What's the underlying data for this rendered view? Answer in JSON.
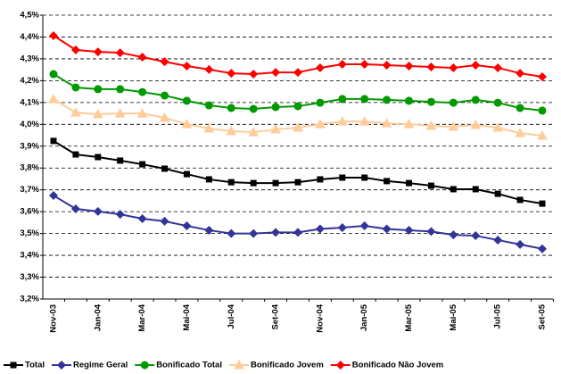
{
  "chart_data": {
    "type": "line",
    "categories": [
      "Nov-03",
      null,
      "Jan-04",
      null,
      "Mar-04",
      null,
      "Mai-04",
      null,
      "Jul-04",
      null,
      "Set-04",
      null,
      "Nov-04",
      null,
      "Jan-05",
      null,
      "Mar-05",
      null,
      "Mai-05",
      null,
      "Jul-05",
      null,
      "Set-05"
    ],
    "series": [
      {
        "name": "Total",
        "color": "#000000",
        "marker": "square",
        "values": [
          3.924,
          3.862,
          3.85,
          3.834,
          3.817,
          3.797,
          3.772,
          3.748,
          3.735,
          3.731,
          3.731,
          3.735,
          3.748,
          3.756,
          3.756,
          3.74,
          3.731,
          3.719,
          3.703,
          3.703,
          3.682,
          3.654,
          3.637
        ]
      },
      {
        "name": "Regime Geral",
        "color": "#333399",
        "marker": "diamond",
        "values": [
          3.674,
          3.613,
          3.601,
          3.588,
          3.568,
          3.556,
          3.535,
          3.515,
          3.5,
          3.5,
          3.505,
          3.505,
          3.521,
          3.527,
          3.535,
          3.521,
          3.515,
          3.509,
          3.494,
          3.49,
          3.47,
          3.45,
          3.43
        ]
      },
      {
        "name": "Bonificado Total",
        "color": "#009900",
        "marker": "circle",
        "values": [
          4.23,
          4.169,
          4.161,
          4.161,
          4.148,
          4.132,
          4.108,
          4.087,
          4.075,
          4.071,
          4.079,
          4.083,
          4.099,
          4.116,
          4.116,
          4.112,
          4.108,
          4.103,
          4.099,
          4.112,
          4.099,
          4.075,
          4.063
        ]
      },
      {
        "name": "Bonificado Jovem",
        "color": "#ffcc99",
        "marker": "triangle",
        "values": [
          4.116,
          4.054,
          4.046,
          4.05,
          4.05,
          4.03,
          4.001,
          3.981,
          3.969,
          3.964,
          3.977,
          3.985,
          4.001,
          4.013,
          4.013,
          4.005,
          4.001,
          3.993,
          3.989,
          3.997,
          3.985,
          3.96,
          3.948
        ]
      },
      {
        "name": "Bonificado Não Jovem",
        "color": "#ff0000",
        "marker": "diamond",
        "values": [
          4.406,
          4.341,
          4.332,
          4.328,
          4.308,
          4.287,
          4.267,
          4.251,
          4.234,
          4.23,
          4.238,
          4.238,
          4.259,
          4.275,
          4.275,
          4.271,
          4.267,
          4.263,
          4.259,
          4.271,
          4.259,
          4.234,
          4.218
        ]
      }
    ],
    "ylim": [
      3.2,
      4.5
    ],
    "yticks": [
      {
        "value": 3.2,
        "label": "3,2%"
      },
      {
        "value": 3.3,
        "label": "3,3%"
      },
      {
        "value": 3.4,
        "label": "3,4%"
      },
      {
        "value": 3.5,
        "label": "3,5%"
      },
      {
        "value": 3.6,
        "label": "3,6%"
      },
      {
        "value": 3.7,
        "label": "3,7%"
      },
      {
        "value": 3.8,
        "label": "3,8%"
      },
      {
        "value": 3.9,
        "label": "3,9%"
      },
      {
        "value": 4.0,
        "label": "4,0%"
      },
      {
        "value": 4.1,
        "label": "4,1%"
      },
      {
        "value": 4.2,
        "label": "4,2%"
      },
      {
        "value": 4.3,
        "label": "4,3%"
      },
      {
        "value": 4.4,
        "label": "4,4%"
      },
      {
        "value": 4.5,
        "label": "4,5%"
      }
    ],
    "grid": true,
    "legend": "bottom"
  }
}
